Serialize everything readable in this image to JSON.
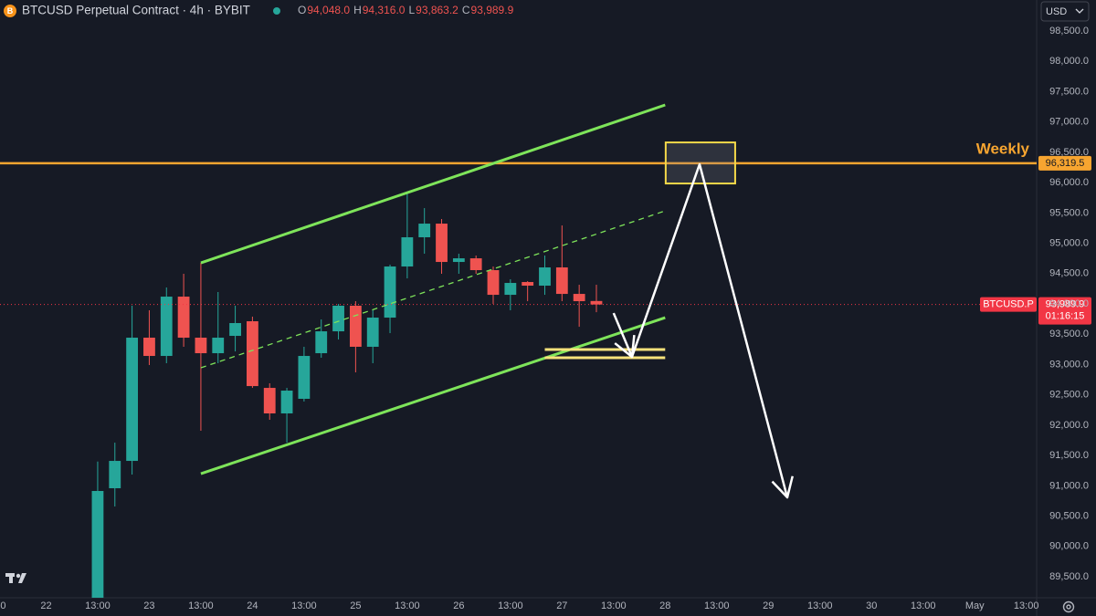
{
  "chart_data": {
    "type": "candlestick",
    "title": "BTCUSD Perpetual Contract · 4h · BYBIT",
    "ohlc_letters": [
      "O",
      "H",
      "L",
      "C"
    ],
    "ohlc_labels": [
      "94,048.0",
      "94,316.0",
      "93,863.2",
      "93,989.9"
    ],
    "currency": "USD",
    "x": [
      0,
      1,
      2,
      3,
      4,
      5,
      6,
      7,
      8,
      9,
      10,
      11,
      12,
      13,
      14,
      15,
      16,
      17,
      18,
      19,
      20,
      21,
      22,
      23,
      24,
      25,
      26,
      27,
      28,
      29
    ],
    "open": [
      89150,
      90960,
      91411,
      93443,
      93142,
      94120,
      93443,
      93187,
      93473,
      93714,
      92615,
      92194,
      92435,
      93187,
      93548,
      93970,
      93293,
      93774,
      94617,
      95099,
      95324,
      94692,
      94752,
      94557,
      94150,
      94361,
      94301,
      94602,
      94165,
      94048
    ],
    "high": [
      91400,
      91712,
      93970,
      93895,
      94271,
      94497,
      94677,
      94196,
      93970,
      93790,
      92691,
      92615,
      93293,
      93744,
      94000,
      94045,
      93895,
      94647,
      95821,
      95580,
      95400,
      94828,
      94798,
      94617,
      94406,
      94376,
      94798,
      95294,
      94316,
      94316
    ],
    "low": [
      88950,
      90659,
      91185,
      92992,
      93022,
      93293,
      91908,
      93022,
      93217,
      92615,
      92089,
      91712,
      92390,
      93112,
      93413,
      92871,
      93022,
      93518,
      94421,
      94828,
      94497,
      94497,
      94497,
      93999,
      93895,
      94045,
      94150,
      94045,
      93623,
      93863.2
    ],
    "close": [
      90915,
      91411,
      93443,
      93142,
      94120,
      93443,
      93187,
      93443,
      93684,
      92645,
      92194,
      92570,
      93142,
      93548,
      93970,
      93293,
      93774,
      94617,
      95099,
      95324,
      94692,
      94752,
      94557,
      94150,
      94346,
      94301,
      94602,
      94165,
      94045,
      93989.9
    ],
    "up_color": "#26a69a",
    "down_color": "#ef5350",
    "xlim": [
      -5.68,
      54.6
    ],
    "ylim": [
      89154,
      99012
    ],
    "grid": false,
    "xticks": [
      {
        "value": -5.5,
        "label": "0"
      },
      {
        "value": -3,
        "label": "22"
      },
      {
        "value": 0,
        "label": "13:00"
      },
      {
        "value": 3,
        "label": "23"
      },
      {
        "value": 6,
        "label": "13:00"
      },
      {
        "value": 9,
        "label": "24"
      },
      {
        "value": 12,
        "label": "13:00"
      },
      {
        "value": 15,
        "label": "25"
      },
      {
        "value": 18,
        "label": "13:00"
      },
      {
        "value": 21,
        "label": "26"
      },
      {
        "value": 24,
        "label": "13:00"
      },
      {
        "value": 27,
        "label": "27"
      },
      {
        "value": 30,
        "label": "13:00"
      },
      {
        "value": 33,
        "label": "28"
      },
      {
        "value": 36,
        "label": "13:00"
      },
      {
        "value": 39,
        "label": "29"
      },
      {
        "value": 42,
        "label": "13:00"
      },
      {
        "value": 45,
        "label": "30"
      },
      {
        "value": 48,
        "label": "13:00"
      },
      {
        "value": 51,
        "label": "May"
      },
      {
        "value": 54,
        "label": "13:00"
      }
    ],
    "yticks": [
      {
        "value": 89500,
        "label": "89,500.0"
      },
      {
        "value": 90000,
        "label": "90,000.0"
      },
      {
        "value": 90500,
        "label": "90,500.0"
      },
      {
        "value": 91000,
        "label": "91,000.0"
      },
      {
        "value": 91500,
        "label": "91,500.0"
      },
      {
        "value": 92000,
        "label": "92,000.0"
      },
      {
        "value": 92500,
        "label": "92,500.0"
      },
      {
        "value": 93000,
        "label": "93,000.0"
      },
      {
        "value": 93500,
        "label": "93,500.0"
      },
      {
        "value": 94000,
        "label": "94,000.0"
      },
      {
        "value": 94500,
        "label": "94,500.0"
      },
      {
        "value": 95000,
        "label": "95,000.0"
      },
      {
        "value": 95500,
        "label": "95,500.0"
      },
      {
        "value": 96000,
        "label": "96,000.0"
      },
      {
        "value": 96500,
        "label": "96,500.0"
      },
      {
        "value": 97000,
        "label": "97,000.0"
      },
      {
        "value": 97500,
        "label": "97,500.0"
      },
      {
        "value": 98000,
        "label": "98,000.0"
      },
      {
        "value": 98500,
        "label": "98,500.0"
      }
    ],
    "last_price": {
      "symbol_tag": "BTCUSD.P",
      "countdown": "01:16:15",
      "color": "#f23645"
    },
    "level": {
      "name": "Weekly",
      "price": 96319.5,
      "label": "96,319.5",
      "color": "#f7a530"
    },
    "trendlines": [
      {
        "color": "#7ee45a",
        "dashed": false,
        "points": [
          [
            6,
            94677
          ],
          [
            33,
            97281
          ]
        ]
      },
      {
        "color": "#7ee45a",
        "dashed": false,
        "points": [
          [
            6,
            91200
          ],
          [
            33,
            93774
          ]
        ]
      },
      {
        "color": "#7ee45a",
        "dashed": true,
        "points": [
          [
            6,
            92946
          ],
          [
            33,
            95535
          ]
        ]
      },
      {
        "color": "#f7e27a",
        "dashed": false,
        "points": [
          [
            26,
            93247
          ],
          [
            33,
            93247
          ]
        ]
      },
      {
        "color": "#f7e27a",
        "dashed": false,
        "points": [
          [
            26,
            93112
          ],
          [
            33,
            93112
          ]
        ]
      }
    ],
    "box": {
      "color": "#f5d949",
      "x": [
        33.03,
        37.07
      ],
      "y": [
        95986,
        96663
      ]
    },
    "arrow": {
      "color": "#ffffff",
      "points": [
        [
          30,
          93849
        ],
        [
          31.07,
          93127
        ],
        [
          35,
          96303
        ],
        [
          40.1,
          90809
        ]
      ]
    }
  }
}
